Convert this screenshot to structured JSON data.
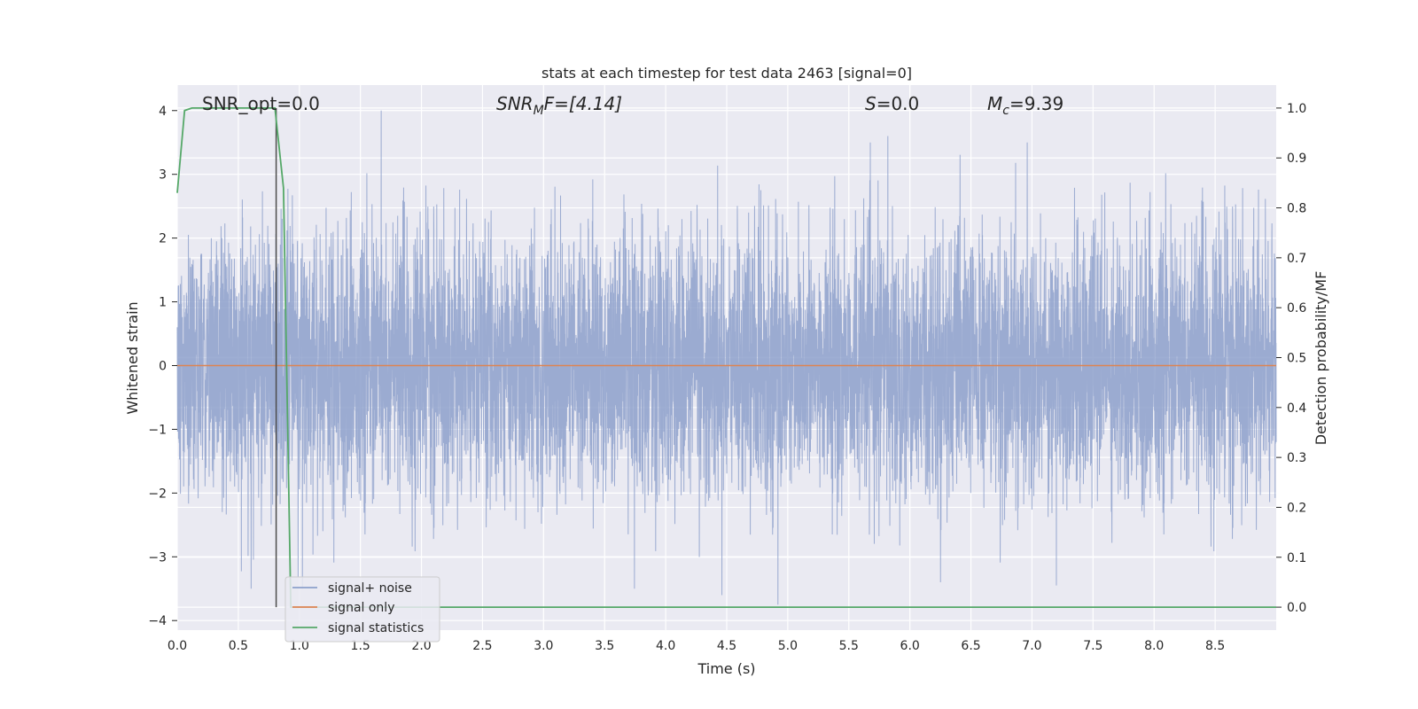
{
  "chart_data": {
    "type": "line",
    "title": "stats at each timestep for test data 2463 [signal=0]",
    "xlabel": "Time (s)",
    "ylabel": "Whitened strain",
    "y2label": "Detection probability/MF",
    "xlim": [
      0.0,
      9.0
    ],
    "ylim": [
      -4.15,
      4.4
    ],
    "y2lim": [
      -0.046,
      1.046
    ],
    "x_ticks": [
      "0.0",
      "0.5",
      "1.0",
      "1.5",
      "2.0",
      "2.5",
      "3.0",
      "3.5",
      "4.0",
      "4.5",
      "5.0",
      "5.5",
      "6.0",
      "6.5",
      "7.0",
      "7.5",
      "8.0",
      "8.5"
    ],
    "y_ticks": [
      "4",
      "3",
      "2",
      "1",
      "0",
      "−1",
      "−2",
      "−3",
      "−4"
    ],
    "y2_ticks": [
      "1.0",
      "0.9",
      "0.8",
      "0.7",
      "0.6",
      "0.5",
      "0.4",
      "0.3",
      "0.2",
      "0.1",
      "0.0"
    ],
    "grid": true,
    "legend_position": "lower-left",
    "annotations": {
      "snr_opt": "SNR_opt=0.0",
      "snr_mf_sym": "SNR",
      "snr_mf_sub": "M",
      "snr_mf_rest": "F=[4.14]",
      "s_sym": "S",
      "s_rest": "=0.0",
      "mc_sym": "M",
      "mc_sub": "c",
      "mc_rest": "=9.39"
    },
    "marker_line_x": 0.81,
    "series": [
      {
        "name": "signal+ noise",
        "color": "#8da0cb",
        "axis": "left",
        "noise_std": 1.0,
        "notable_peaks": [
          {
            "x": 1.67,
            "y": 4.0
          },
          {
            "x": 5.82,
            "y": 3.6
          },
          {
            "x": 4.92,
            "y": -3.75
          },
          {
            "x": 4.46,
            "y": -3.6
          },
          {
            "x": 7.2,
            "y": -3.45
          }
        ]
      },
      {
        "name": "signal only",
        "color": "#dd8452",
        "axis": "left",
        "x": [
          0.0,
          9.0
        ],
        "y": [
          0.0,
          0.0
        ]
      },
      {
        "name": "signal statistics",
        "color": "#55a868",
        "axis": "right",
        "x": [
          0.0,
          0.06,
          0.12,
          0.5,
          0.8,
          0.87,
          0.93,
          9.0
        ],
        "y": [
          0.83,
          0.995,
          1.0,
          1.0,
          1.0,
          0.84,
          0.0,
          0.0
        ]
      }
    ]
  }
}
